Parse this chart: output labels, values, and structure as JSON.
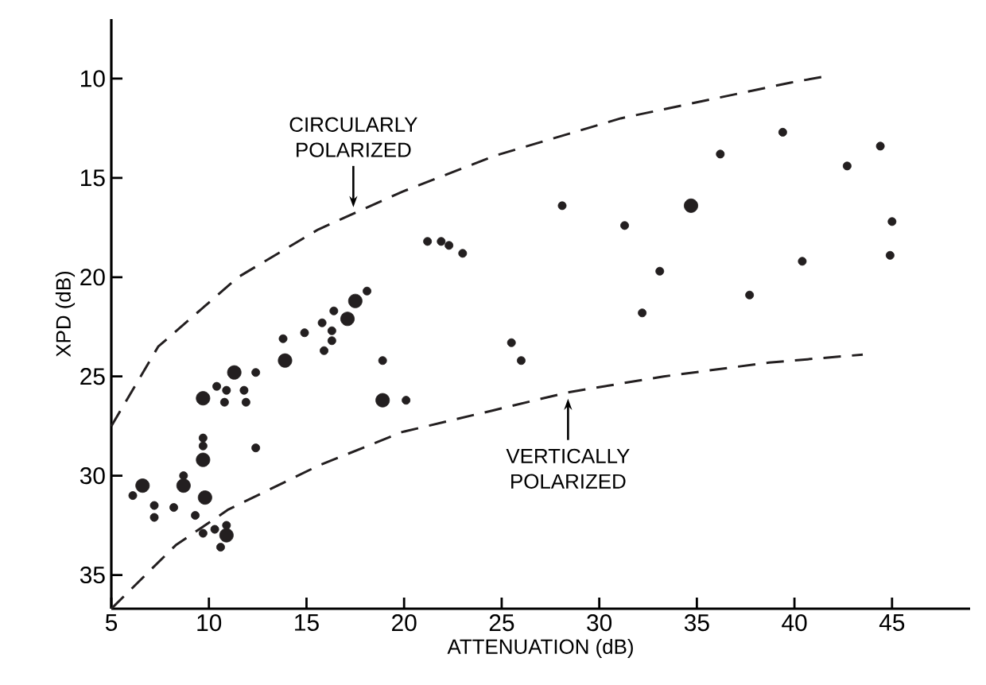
{
  "chart_data": {
    "type": "bubble",
    "xlabel": "ATTENUATION (dB)",
    "ylabel": "XPD (dB)",
    "xlim": [
      5,
      49
    ],
    "xticks": [
      5,
      10,
      15,
      20,
      25,
      30,
      35,
      40,
      45
    ],
    "ylim": [
      36.7,
      7
    ],
    "yticks": [
      10,
      15,
      20,
      25,
      30,
      35
    ],
    "grid": false,
    "series": [
      {
        "color": "#231f20",
        "x": [
          6.1,
          6.6,
          7.2,
          7.2,
          8.2,
          8.7,
          8.7,
          9.3,
          9.7,
          9.8,
          9.7,
          9.7,
          9.7,
          9.7,
          10.3,
          10.9,
          10.6,
          10.9,
          10.4,
          10.9,
          10.8,
          11.3,
          11.8,
          11.9,
          12.4,
          12.4,
          13.8,
          13.9,
          14.9,
          15.8,
          15.9,
          16.4,
          16.3,
          16.3,
          17.1,
          17.5,
          18.1,
          18.9,
          18.9,
          20.1,
          21.2,
          21.9,
          22.3,
          23.0,
          25.5,
          26.0,
          28.1,
          31.3,
          33.1,
          32.2,
          34.7,
          36.2,
          37.7,
          39.4,
          40.4,
          42.7,
          44.4,
          45.0,
          44.9
        ],
        "values": [
          31.0,
          30.5,
          31.5,
          32.1,
          31.6,
          30.5,
          30.0,
          32.0,
          32.9,
          31.1,
          29.2,
          28.5,
          28.1,
          26.1,
          32.7,
          33.0,
          33.6,
          32.5,
          25.5,
          25.7,
          26.3,
          24.8,
          25.7,
          26.3,
          24.8,
          28.6,
          23.1,
          24.2,
          22.8,
          22.3,
          23.7,
          21.7,
          22.7,
          23.2,
          22.1,
          21.2,
          20.7,
          24.2,
          26.2,
          26.2,
          18.2,
          18.2,
          18.4,
          18.8,
          23.3,
          24.2,
          16.4,
          17.4,
          19.7,
          21.8,
          16.4,
          13.8,
          20.9,
          12.7,
          19.2,
          14.4,
          13.4,
          17.2,
          18.9
        ],
        "sizes": [
          0.35,
          1,
          0.35,
          0.35,
          0.35,
          1,
          0.35,
          0.35,
          0.35,
          1,
          1,
          0.35,
          0.35,
          1,
          0.35,
          1,
          0.35,
          0.35,
          0.35,
          0.35,
          0.35,
          1,
          0.35,
          0.35,
          0.35,
          0.35,
          0.35,
          1,
          0.35,
          0.35,
          0.35,
          0.35,
          0.35,
          0.35,
          1,
          1,
          0.35,
          0.35,
          1,
          0.35,
          0.35,
          0.35,
          0.35,
          0.35,
          0.35,
          0.35,
          0.35,
          0.35,
          0.35,
          0.35,
          1,
          0.35,
          0.35,
          0.35,
          0.35,
          0.35,
          0.35,
          0.35,
          0.35
        ]
      },
      {
        "type": "line",
        "name": "CIRCULARLY POLARIZED",
        "color": "#231f20",
        "line_style": "dashed",
        "x": [
          5,
          7.4,
          11.5,
          15.6,
          17.4,
          19.9,
          24.6,
          31.1,
          39.8,
          41.5
        ],
        "values": [
          27.5,
          23.5,
          20.0,
          17.6,
          16.8,
          15.7,
          13.9,
          12.0,
          10.2,
          9.9
        ]
      },
      {
        "type": "line",
        "name": "VERTICALLY POLARIZED",
        "color": "#231f20",
        "line_style": "dashed",
        "x": [
          5,
          8.3,
          11.0,
          15.6,
          19.9,
          24.6,
          28.4,
          33.3,
          38.7,
          43.5
        ],
        "values": [
          36.7,
          33.5,
          31.7,
          29.5,
          27.8,
          26.7,
          25.8,
          25.0,
          24.3,
          23.9
        ]
      }
    ]
  }
}
